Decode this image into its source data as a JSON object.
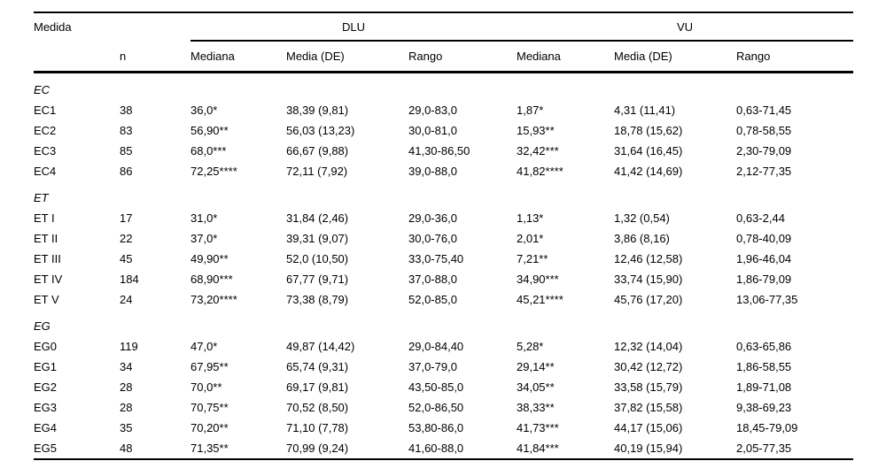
{
  "table": {
    "header": {
      "medida": "Medida",
      "n": "n",
      "dlu": "DLU",
      "vu": "VU",
      "sub": [
        "Mediana",
        "Media (DE)",
        "Rango",
        "Mediana",
        "Media (DE)",
        "Rango"
      ]
    },
    "groups": [
      {
        "label": "EC",
        "rows": [
          {
            "label": "EC1",
            "n": "38",
            "dlu": [
              "36,0*",
              "38,39 (9,81)",
              "29,0-83,0"
            ],
            "vu": [
              "1,87*",
              "4,31 (11,41)",
              "0,63-71,45"
            ]
          },
          {
            "label": "EC2",
            "n": "83",
            "dlu": [
              "56,90**",
              "56,03 (13,23)",
              "30,0-81,0"
            ],
            "vu": [
              "15,93**",
              "18,78 (15,62)",
              "0,78-58,55"
            ]
          },
          {
            "label": "EC3",
            "n": "85",
            "dlu": [
              "68,0***",
              "66,67 (9,88)",
              "41,30-86,50"
            ],
            "vu": [
              "32,42***",
              "31,64 (16,45)",
              "2,30-79,09"
            ]
          },
          {
            "label": "EC4",
            "n": "86",
            "dlu": [
              "72,25****",
              "72,11 (7,92)",
              "39,0-88,0"
            ],
            "vu": [
              "41,82****",
              "41,42 (14,69)",
              "2,12-77,35"
            ]
          }
        ]
      },
      {
        "label": "ET",
        "rows": [
          {
            "label": "ET I",
            "n": "17",
            "dlu": [
              "31,0*",
              "31,84 (2,46)",
              "29,0-36,0"
            ],
            "vu": [
              "1,13*",
              "1,32 (0,54)",
              "0,63-2,44"
            ]
          },
          {
            "label": "ET II",
            "n": "22",
            "dlu": [
              "37,0*",
              "39,31 (9,07)",
              "30,0-76,0"
            ],
            "vu": [
              "2,01*",
              "3,86 (8,16)",
              "0,78-40,09"
            ]
          },
          {
            "label": "ET III",
            "n": "45",
            "dlu": [
              "49,90**",
              "52,0 (10,50)",
              "33,0-75,40"
            ],
            "vu": [
              "7,21**",
              "12,46 (12,58)",
              "1,96-46,04"
            ]
          },
          {
            "label": "ET IV",
            "n": "184",
            "dlu": [
              "68,90***",
              "67,77 (9,71)",
              "37,0-88,0"
            ],
            "vu": [
              "34,90***",
              "33,74 (15,90)",
              "1,86-79,09"
            ]
          },
          {
            "label": "ET V",
            "n": "24",
            "dlu": [
              "73,20****",
              "73,38 (8,79)",
              "52,0-85,0"
            ],
            "vu": [
              "45,21****",
              "45,76 (17,20)",
              "13,06-77,35"
            ]
          }
        ]
      },
      {
        "label": "EG",
        "rows": [
          {
            "label": "EG0",
            "n": "119",
            "dlu": [
              "47,0*",
              "49,87 (14,42)",
              "29,0-84,40"
            ],
            "vu": [
              "5,28*",
              "12,32 (14,04)",
              "0,63-65,86"
            ]
          },
          {
            "label": "EG1",
            "n": "34",
            "dlu": [
              "67,95**",
              "65,74 (9,31)",
              "37,0-79,0"
            ],
            "vu": [
              "29,14**",
              "30,42 (12,72)",
              "1,86-58,55"
            ]
          },
          {
            "label": "EG2",
            "n": "28",
            "dlu": [
              "70,0**",
              "69,17 (9,81)",
              "43,50-85,0"
            ],
            "vu": [
              "34,05**",
              "33,58 (15,79)",
              "1,89-71,08"
            ]
          },
          {
            "label": "EG3",
            "n": "28",
            "dlu": [
              "70,75**",
              "70,52 (8,50)",
              "52,0-86,50"
            ],
            "vu": [
              "38,33**",
              "37,82 (15,58)",
              "9,38-69,23"
            ]
          },
          {
            "label": "EG4",
            "n": "35",
            "dlu": [
              "70,20**",
              "71,10 (7,78)",
              "53,80-86,0"
            ],
            "vu": [
              "41,73***",
              "44,17 (15,06)",
              "18,45-79,09"
            ]
          },
          {
            "label": "EG5",
            "n": "48",
            "dlu": [
              "71,35**",
              "70,99 (9,24)",
              "41,60-88,0"
            ],
            "vu": [
              "41,84***",
              "40,19 (15,94)",
              "2,05-77,35"
            ]
          }
        ]
      }
    ]
  }
}
